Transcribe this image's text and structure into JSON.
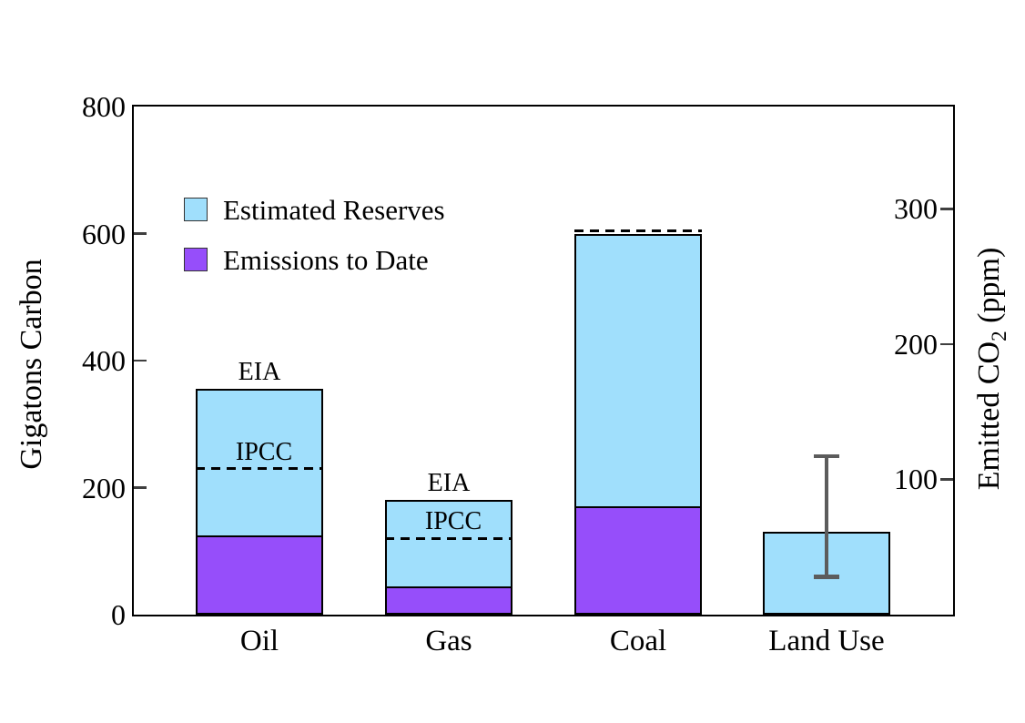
{
  "chart_data": {
    "type": "bar",
    "stacked": true,
    "title": "",
    "categories": [
      "Oil",
      "Gas",
      "Coal",
      "Land Use"
    ],
    "left_axis": {
      "label": "Gigatons Carbon",
      "range": [
        0,
        800
      ],
      "tick_labels": [
        0,
        200,
        400,
        600,
        800
      ],
      "tick_marks": [
        200,
        400,
        600
      ]
    },
    "right_axis": {
      "label_pre": "Emitted CO",
      "label_sub": "2",
      "label_post": " (ppm)",
      "ticks_ppm": [
        100,
        200,
        300
      ],
      "gtc_per_ppm": 2.13
    },
    "legend": [
      {
        "label": "Estimated Reserves",
        "color": "#a0dffc"
      },
      {
        "label": "Emissions to Date",
        "color": "#964efa"
      }
    ],
    "series": [
      {
        "name": "Emissions to Date",
        "color": "#964efa",
        "values": [
          125,
          45,
          170,
          0
        ]
      },
      {
        "name": "Estimated Reserves",
        "color": "#a0dffc",
        "values": [
          230,
          135,
          430,
          130
        ]
      }
    ],
    "bars": [
      {
        "category": "Oil",
        "total": 355,
        "emissions_to_date": 125,
        "ipcc_line": 230,
        "eia_label": "EIA",
        "ipcc_label": "IPCC",
        "error_bar": null
      },
      {
        "category": "Gas",
        "total": 180,
        "emissions_to_date": 45,
        "ipcc_line": 120,
        "eia_label": "EIA",
        "ipcc_label": "IPCC",
        "error_bar": null
      },
      {
        "category": "Coal",
        "total": 600,
        "emissions_to_date": 170,
        "ipcc_line": 600,
        "eia_label": null,
        "ipcc_label": null,
        "error_bar": null
      },
      {
        "category": "Land Use",
        "total": 130,
        "emissions_to_date": 0,
        "ipcc_line": null,
        "eia_label": null,
        "ipcc_label": null,
        "error_bar": {
          "low": 60,
          "high": 250
        }
      }
    ],
    "colors": {
      "reserves": "#a0dffc",
      "emissions": "#964efa",
      "error_bar": "#5c5c5c",
      "axis_frame": "#000000",
      "tick_mark": "#3f3f3f"
    },
    "grid": false,
    "legend_position": "upper-left-inside"
  }
}
